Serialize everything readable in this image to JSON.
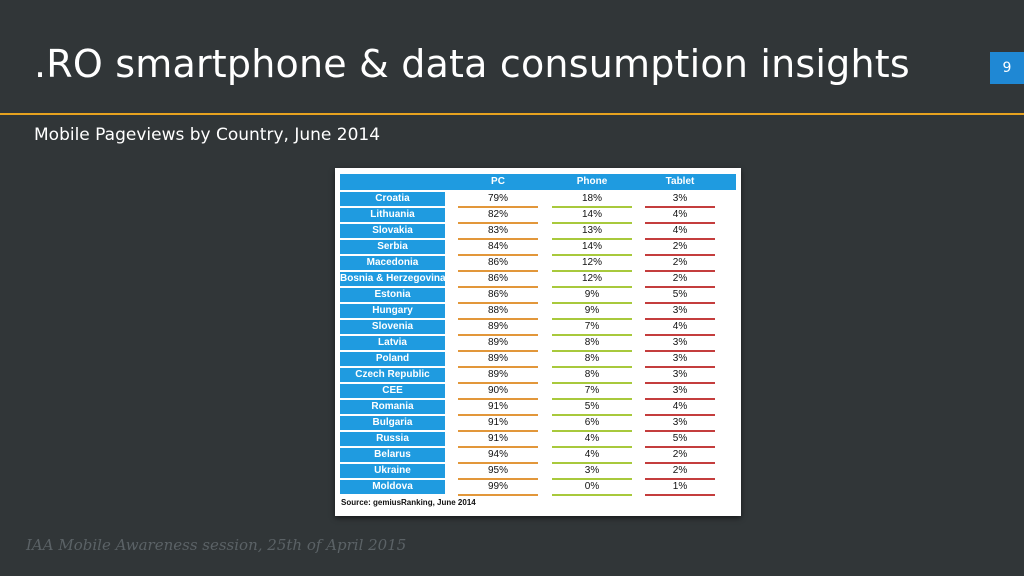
{
  "slide": {
    "title": ".RO smartphone & data consumption insights",
    "page_number": "9",
    "subtitle": "Mobile Pageviews by Country, June 2014",
    "footer": "IAA Mobile Awareness session, 25th of April 2015",
    "colors": {
      "background": "#313638",
      "accent_rule": "#e6a21f",
      "page_badge": "#1f88d4",
      "table_header": "#1f9be0",
      "pc_underline": "#e2973a",
      "phone_underline": "#a8c93c",
      "tablet_underline": "#c43d3d"
    }
  },
  "table": {
    "columns": [
      "",
      "PC",
      "Phone",
      "Tablet"
    ],
    "rows": [
      {
        "country": "Croatia",
        "pc": "79%",
        "phone": "18%",
        "tablet": "3%"
      },
      {
        "country": "Lithuania",
        "pc": "82%",
        "phone": "14%",
        "tablet": "4%"
      },
      {
        "country": "Slovakia",
        "pc": "83%",
        "phone": "13%",
        "tablet": "4%"
      },
      {
        "country": "Serbia",
        "pc": "84%",
        "phone": "14%",
        "tablet": "2%"
      },
      {
        "country": "Macedonia",
        "pc": "86%",
        "phone": "12%",
        "tablet": "2%"
      },
      {
        "country": "Bosnia & Herzegovina",
        "pc": "86%",
        "phone": "12%",
        "tablet": "2%"
      },
      {
        "country": "Estonia",
        "pc": "86%",
        "phone": "9%",
        "tablet": "5%"
      },
      {
        "country": "Hungary",
        "pc": "88%",
        "phone": "9%",
        "tablet": "3%"
      },
      {
        "country": "Slovenia",
        "pc": "89%",
        "phone": "7%",
        "tablet": "4%"
      },
      {
        "country": "Latvia",
        "pc": "89%",
        "phone": "8%",
        "tablet": "3%"
      },
      {
        "country": "Poland",
        "pc": "89%",
        "phone": "8%",
        "tablet": "3%"
      },
      {
        "country": "Czech Republic",
        "pc": "89%",
        "phone": "8%",
        "tablet": "3%"
      },
      {
        "country": "CEE",
        "pc": "90%",
        "phone": "7%",
        "tablet": "3%"
      },
      {
        "country": "Romania",
        "pc": "91%",
        "phone": "5%",
        "tablet": "4%"
      },
      {
        "country": "Bulgaria",
        "pc": "91%",
        "phone": "6%",
        "tablet": "3%"
      },
      {
        "country": "Russia",
        "pc": "91%",
        "phone": "4%",
        "tablet": "5%"
      },
      {
        "country": "Belarus",
        "pc": "94%",
        "phone": "4%",
        "tablet": "2%"
      },
      {
        "country": "Ukraine",
        "pc": "95%",
        "phone": "3%",
        "tablet": "2%"
      },
      {
        "country": "Moldova",
        "pc": "99%",
        "phone": "0%",
        "tablet": "1%"
      }
    ],
    "source": "Source: gemiusRanking, June 2014"
  }
}
